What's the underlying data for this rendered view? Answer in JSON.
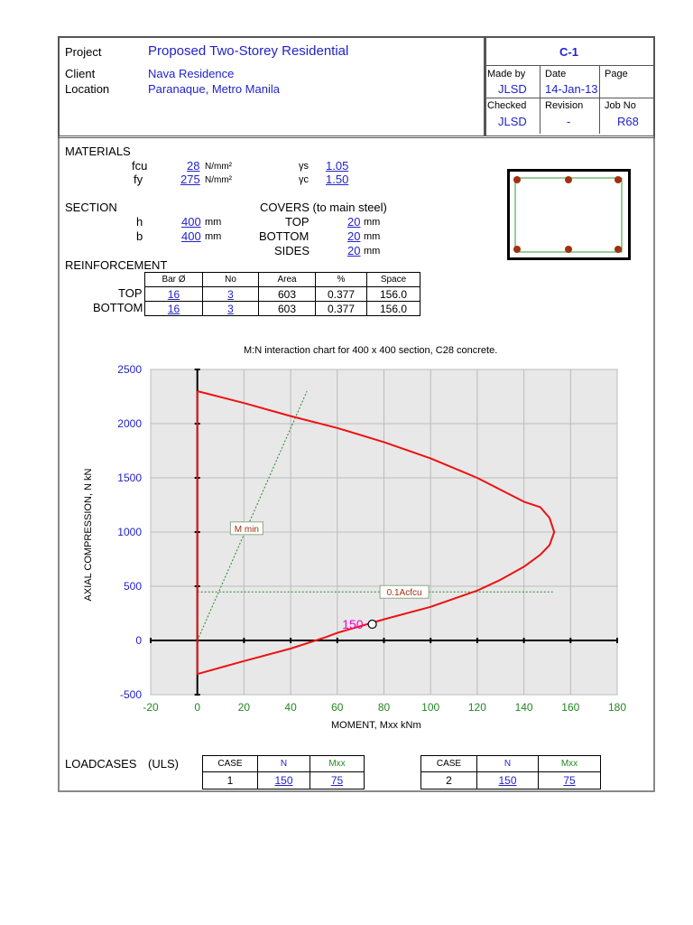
{
  "header": {
    "project_label": "Project",
    "project": "Proposed Two-Storey Residential",
    "client_label": "Client",
    "client": "Nava Residence",
    "location_label": "Location",
    "location": "Paranaque, Metro Manila",
    "ref": "C-1",
    "made_by_label": "Made by",
    "made_by": "JLSD",
    "date_label": "Date",
    "date": "14-Jan-13",
    "page_label": "Page",
    "page": "",
    "checked_label": "Checked",
    "checked": "JLSD",
    "revision_label": "Revision",
    "revision": "-",
    "job_no_label": "Job No",
    "job_no": "R68"
  },
  "materials": {
    "title": "MATERIALS",
    "fcu_label": "fcu",
    "fcu": "28",
    "fcu_unit": "N/mm²",
    "fy_label": "fy",
    "fy": "275",
    "fy_unit": "N/mm²",
    "gs_label": "γs",
    "gs": "1.05",
    "gc_label": "γc",
    "gc": "1.50"
  },
  "section": {
    "title": "SECTION",
    "h_label": "h",
    "h": "400",
    "h_unit": "mm",
    "b_label": "b",
    "b": "400",
    "b_unit": "mm",
    "covers_title": "COVERS (to main steel)",
    "top_label": "TOP",
    "top": "20",
    "bottom_label": "BOTTOM",
    "bottom": "20",
    "sides_label": "SIDES",
    "sides": "20",
    "unit": "mm"
  },
  "reinforcement": {
    "title": "REINFORCEMENT",
    "columns": [
      "Bar Ø",
      "No",
      "Area",
      "%",
      "Space"
    ],
    "rows": [
      {
        "label": "TOP",
        "bar": "16",
        "no": "3",
        "area": "603",
        "pct": "0.377",
        "space": "156.0"
      },
      {
        "label": "BOTTOM",
        "bar": "16",
        "no": "3",
        "area": "603",
        "pct": "0.377",
        "space": "156.0"
      }
    ]
  },
  "chart_data": {
    "type": "line",
    "title": "M:N interaction chart for 400 x 400 section, C28 concrete.",
    "xlabel": "MOMENT, Mxx kNm",
    "ylabel": "AXIAL COMPRESSION, N kN",
    "xlim": [
      -20,
      180
    ],
    "ylim": [
      -500,
      2500
    ],
    "xticks": [
      -20,
      0,
      20,
      40,
      60,
      80,
      100,
      120,
      140,
      160,
      180
    ],
    "yticks": [
      -500,
      0,
      500,
      1000,
      1500,
      2000,
      2500
    ],
    "grid": true,
    "colors": {
      "curve": "#ee1111",
      "guide": "#228822",
      "x_ticks": "#228822",
      "y_ticks": "#2222cc",
      "point_label": "#ee00cc",
      "plot_bg": "#e8e8e8"
    },
    "series": [
      {
        "name": "",
        "points": [
          [
            0,
            2300
          ],
          [
            20,
            2190
          ],
          [
            40,
            2070
          ],
          [
            60,
            1960
          ],
          [
            80,
            1830
          ],
          [
            100,
            1680
          ],
          [
            120,
            1500
          ],
          [
            140,
            1280
          ],
          [
            147,
            1230
          ],
          [
            151,
            1130
          ],
          [
            153,
            1000
          ],
          [
            151,
            880
          ],
          [
            147,
            790
          ],
          [
            140,
            680
          ],
          [
            130,
            560
          ],
          [
            120,
            460
          ],
          [
            100,
            310
          ],
          [
            80,
            195
          ],
          [
            60,
            70
          ],
          [
            55,
            30
          ],
          [
            40,
            -75
          ],
          [
            20,
            -190
          ],
          [
            0,
            -310
          ],
          [
            0,
            2300
          ]
        ]
      }
    ],
    "guides": [
      {
        "label": "M min",
        "points": [
          [
            0,
            0
          ],
          [
            47,
            2300
          ]
        ]
      },
      {
        "label": "0.1Acfcu",
        "points": [
          [
            0,
            448
          ],
          [
            153,
            448
          ]
        ]
      }
    ],
    "load_points": [
      {
        "label": "150",
        "x": 75,
        "y": 150
      }
    ]
  },
  "loadcases": {
    "title": "LOADCASES",
    "subtitle": "(ULS)",
    "columns": [
      "CASE",
      "N",
      "Mxx"
    ],
    "cases": [
      {
        "case": "1",
        "n": "150",
        "m": "75"
      },
      {
        "case": "2",
        "n": "150",
        "m": "75"
      }
    ]
  }
}
